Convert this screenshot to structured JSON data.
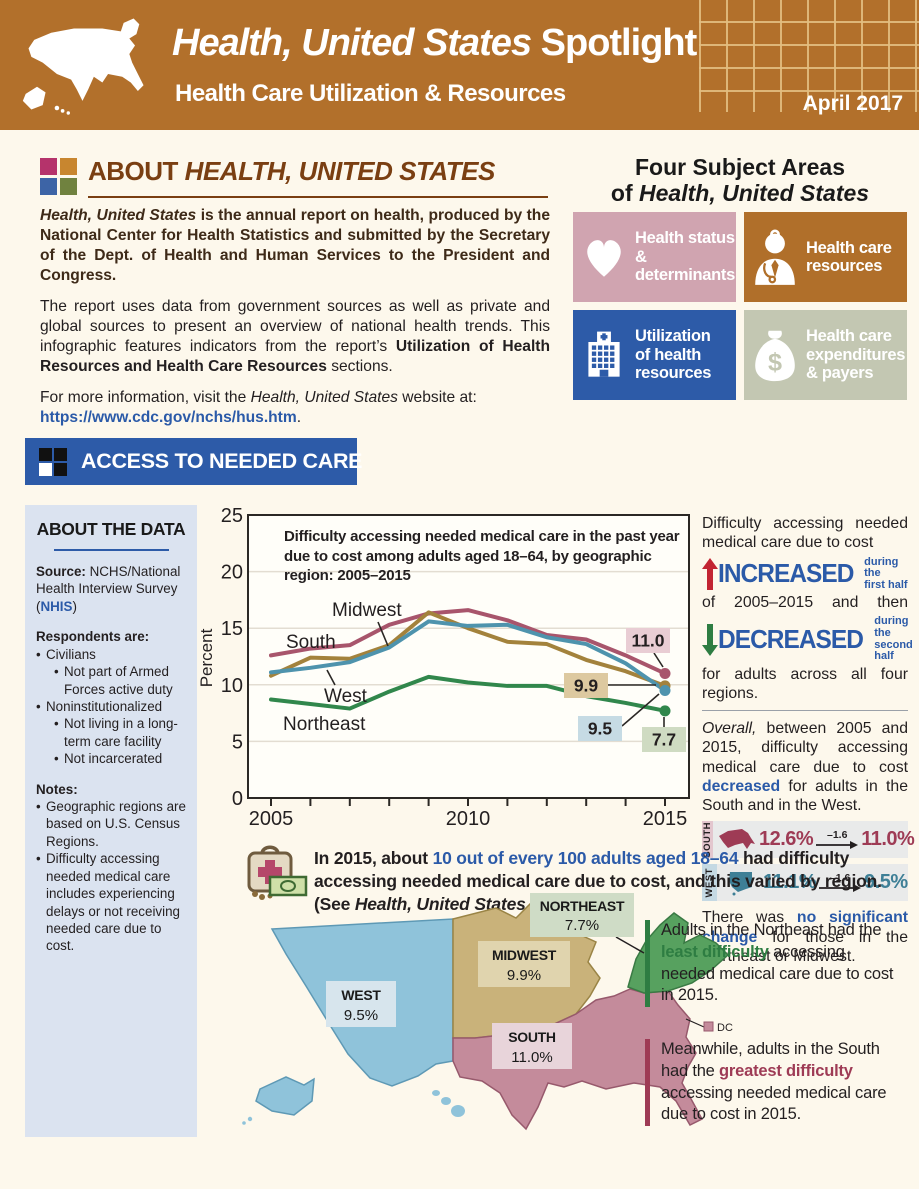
{
  "header": {
    "bg": "#b2702b",
    "title_italic": "Health, United States",
    "title_regular": " Spotlight",
    "subtitle": "Health Care Utilization & Resources",
    "date": "April 2017"
  },
  "about": {
    "squares": [
      "#b5336b",
      "#c8862f",
      "#3d64a6",
      "#70823f"
    ],
    "heading_prefix": "ABOUT ",
    "heading_italic": "HEALTH, UNITED STATES",
    "p1_italic": "Health, United States",
    "p1_rest": " is the annual report on health, produced by the National Center for Health Statistics and submitted by the Secretary of the Dept. of Health and Human Services to the President and Congress.",
    "p2_start": "The report uses data from government sources as well as private and global sources to present an overview of national health trends. This infographic features indicators from the report’s ",
    "p2_bold": "Utilization of Health Resources and Health Care Resources",
    "p2_end": " sections.",
    "p3_start": "For more information, visit the ",
    "p3_italic": "Health, United States",
    "p3_end": " website at:",
    "link": "https://www.cdc.gov/nchs/hus.htm",
    "link_suffix": "."
  },
  "subject_areas": {
    "title_line1": "Four Subject Areas",
    "title_line2_prefix": "of ",
    "title_line2_italic": "Health, United States",
    "tiles": [
      {
        "label": "Health status\n& determinants",
        "color": "#d0a4b0",
        "icon": "heart"
      },
      {
        "label": "Health care\nresources",
        "color": "#b06f2a",
        "icon": "doctor"
      },
      {
        "label": "Utilization\nof health\nresources",
        "color": "#2d5ba8",
        "icon": "hospital"
      },
      {
        "label": "Health care\nexpenditures\n& payers",
        "color": "#c3c7b2",
        "icon": "money-bag"
      }
    ]
  },
  "banner": {
    "bg": "#2d5ba8",
    "label": "ACCESS TO NEEDED CARE"
  },
  "about_data": {
    "heading": "ABOUT THE DATA",
    "source_label": "Source:",
    "source_text": " NCHS/National Health Interview Survey (",
    "source_link": "NHIS",
    "source_close": ")",
    "respondents_label": "Respondents are:",
    "respondents": [
      {
        "text": "Civilians",
        "subs": [
          "Not part of Armed Forces active duty"
        ]
      },
      {
        "text": "Noninstitutionalized",
        "subs": [
          "Not living in a long-term care facility",
          "Not incarcerated"
        ]
      }
    ],
    "notes_label": "Notes:",
    "notes": [
      "Geographic regions are based on U.S. Census Regions.",
      "Difficulty accessing needed medical care includes experiencing delays or not receiving needed care due to cost."
    ]
  },
  "chart_data": {
    "type": "line",
    "title": "Difficulty accessing needed medical care in the past year due to cost among adults aged 18–64, by geographic region: 2005–2015",
    "ylabel": "Percent",
    "ylim": [
      0,
      25
    ],
    "yticks": [
      0,
      5,
      10,
      15,
      20,
      25
    ],
    "x": [
      2005,
      2006,
      2007,
      2008,
      2009,
      2010,
      2011,
      2012,
      2013,
      2014,
      2015
    ],
    "xticklabels": [
      "2005",
      "2010",
      "2015"
    ],
    "grid": "horizontal",
    "series": [
      {
        "name": "South",
        "color": "#a8556c",
        "end_label": "11.0",
        "end_label_bg": "#e9cdd4",
        "values": [
          12.6,
          13.2,
          13.5,
          15.3,
          16.3,
          16.6,
          15.7,
          14.4,
          14.0,
          12.6,
          11.0
        ]
      },
      {
        "name": "Midwest",
        "color": "#a3823c",
        "end_label": "9.9",
        "end_label_bg": "#ddc9a0",
        "values": [
          10.8,
          12.4,
          12.3,
          13.5,
          16.4,
          15.0,
          13.8,
          13.6,
          12.2,
          11.2,
          9.9
        ]
      },
      {
        "name": "West",
        "color": "#4e93ad",
        "end_label": "9.5",
        "end_label_bg": "#c6dbe4",
        "values": [
          11.1,
          11.5,
          12.0,
          13.3,
          15.6,
          15.2,
          15.3,
          14.2,
          13.6,
          11.9,
          9.5
        ]
      },
      {
        "name": "Northeast",
        "color": "#31874c",
        "end_label": "7.7",
        "end_label_bg": "#cfdbc2",
        "values": [
          8.7,
          8.3,
          7.9,
          9.4,
          10.7,
          10.2,
          9.9,
          9.9,
          9.0,
          8.4,
          7.7
        ]
      }
    ]
  },
  "trend": {
    "intro": "Difficulty accessing needed medical care due to cost",
    "increased_word": "INCREASED",
    "increased_note1": "during the",
    "increased_note2": "first half",
    "middle": "of 2005–2015 and then",
    "decreased_word": "DECREASED",
    "decreased_note1": "during the",
    "decreased_note2": "second half",
    "outro": "for adults across all four regions.",
    "overall_italic": "Overall,",
    "overall_1": " between 2005 and 2015, difficulty accessing medical care due to cost ",
    "overall_hl": "decreased",
    "overall_2": " for adults in the South and in the West.",
    "stats": [
      {
        "region": "SOUTH",
        "from": "12.6%",
        "delta": "–1.6",
        "to": "11.0%",
        "color": "#9e3b55",
        "strip_bg": "#e3c6ce"
      },
      {
        "region": "WEST",
        "from": "11.1%",
        "delta": "–1.6",
        "to": "9.5%",
        "color": "#3e7f96",
        "strip_bg": "#c5d9e3"
      }
    ],
    "nochange_1": "There was ",
    "nochange_hl": "no significant change",
    "nochange_2": " for those in the Northeast or Midwest."
  },
  "callout": {
    "t1": "In 2015, about ",
    "hl": "10 out of every 100 adults aged 18–64",
    "t2": " had difficulty accessing needed medical care due to cost, and this varied by region. (See ",
    "italic": "Health, United States",
    "t3": ".)"
  },
  "map": {
    "dc_label": "DC",
    "regions": [
      {
        "name": "WEST",
        "value": "9.5%",
        "fill": "#8fc3da",
        "label_bg": "#d7e5ed"
      },
      {
        "name": "MIDWEST",
        "value": "9.9%",
        "fill": "#c9b27a",
        "label_bg": "#e0d4ae"
      },
      {
        "name": "NORTHEAST",
        "value": "7.7%",
        "fill": "#57a15f",
        "label_bg": "#cfdcc6"
      },
      {
        "name": "SOUTH",
        "value": "11.0%",
        "fill": "#c48b9b",
        "label_bg": "#e8d4da"
      }
    ]
  },
  "map_notes": [
    {
      "bar_color": "#2e7d42",
      "hl_color": "#2e7d42",
      "t1": "Adults in the Northeast had the ",
      "hl": "least difficulty",
      "t2": " accessing needed medical care due to cost in 2015."
    },
    {
      "bar_color": "#9e3b55",
      "hl_color": "#9e3b55",
      "t1": "Meanwhile, adults in the South had the ",
      "hl": "greatest difficulty",
      "t2": " accessing needed medical care due to cost in 2015."
    }
  ]
}
